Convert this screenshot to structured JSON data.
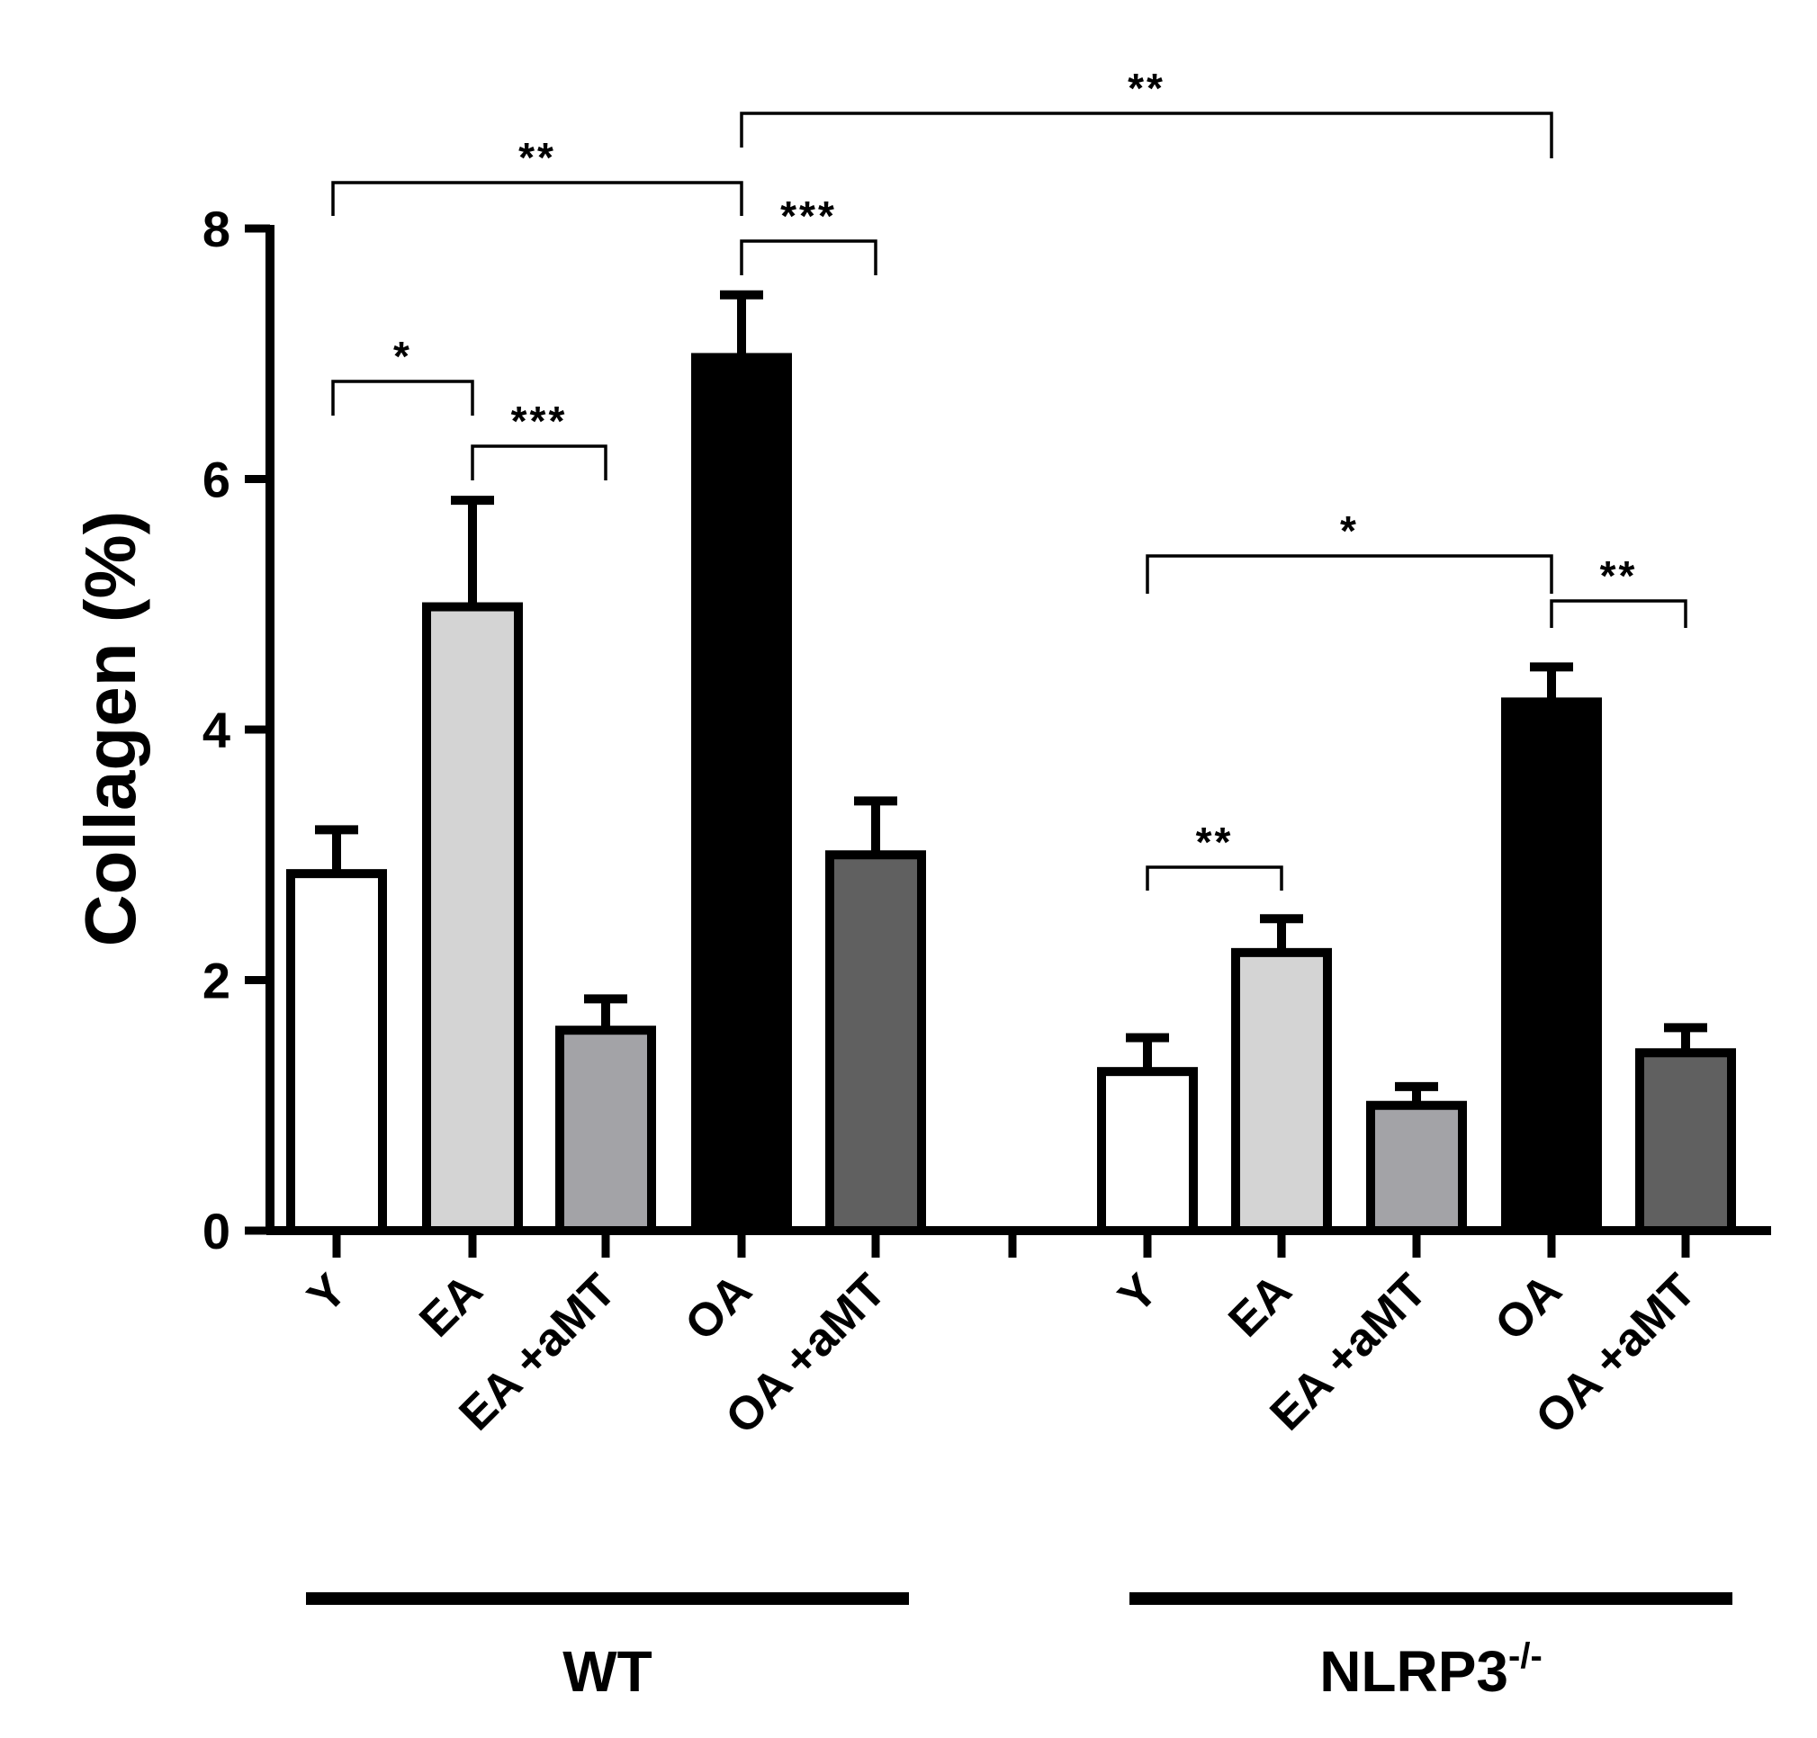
{
  "chart_data": {
    "type": "bar",
    "ylabel": "Collagen (%)",
    "ylim": [
      0,
      8
    ],
    "yticks": [
      "0",
      "2",
      "4",
      "6",
      "8"
    ],
    "grid": false,
    "groups": [
      {
        "name": "WT",
        "name_sup": "",
        "categories": [
          "Y",
          "EA",
          "EA +aMT",
          "OA",
          "OA +aMT"
        ],
        "values": [
          2.85,
          4.98,
          1.6,
          6.97,
          3.0
        ],
        "errors": [
          0.35,
          0.85,
          0.25,
          0.5,
          0.43
        ]
      },
      {
        "name": "NLRP3",
        "name_sup": "-/-",
        "categories": [
          "Y",
          "EA",
          "EA +aMT",
          "OA",
          "OA +aMT"
        ],
        "values": [
          1.27,
          2.22,
          1.0,
          4.22,
          1.42
        ],
        "errors": [
          0.27,
          0.27,
          0.15,
          0.28,
          0.2
        ]
      }
    ],
    "bar_colors": [
      "#ffffff",
      "#d4d4d4",
      "#a3a3a7",
      "#000000",
      "#606060"
    ],
    "significance": [
      {
        "from": [
          0,
          0
        ],
        "to": [
          0,
          1
        ],
        "label": "*"
      },
      {
        "from": [
          0,
          1
        ],
        "to": [
          0,
          2
        ],
        "label": "***"
      },
      {
        "from": [
          0,
          0
        ],
        "to": [
          0,
          3
        ],
        "label": "**"
      },
      {
        "from": [
          0,
          3
        ],
        "to": [
          0,
          4
        ],
        "label": "***"
      },
      {
        "from": [
          0,
          3
        ],
        "to": [
          1,
          3
        ],
        "label": "**"
      },
      {
        "from": [
          1,
          0
        ],
        "to": [
          1,
          1
        ],
        "label": "**"
      },
      {
        "from": [
          1,
          0
        ],
        "to": [
          1,
          3
        ],
        "label": "*"
      },
      {
        "from": [
          1,
          3
        ],
        "to": [
          1,
          4
        ],
        "label": "**"
      }
    ]
  }
}
